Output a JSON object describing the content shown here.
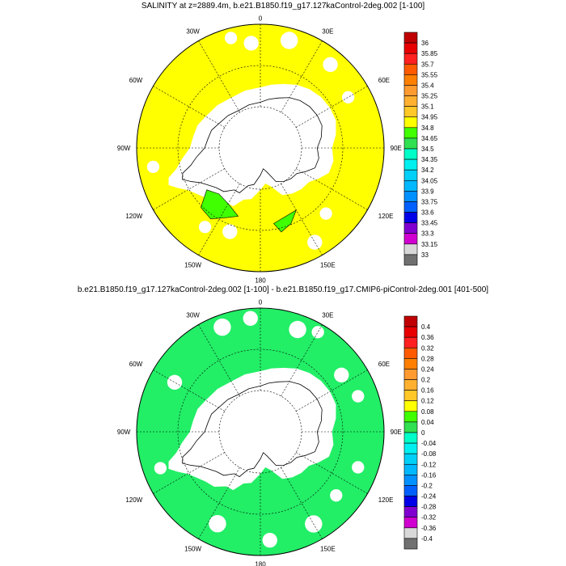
{
  "panels": [
    {
      "title": "SALINITY at z=2889.4m, b.e21.B1850.f19_g17.127kaControl-2deg.002 [1-100]",
      "lon_labels": {
        "lbl_0": "0",
        "lbl_30e": "30E",
        "lbl_60e": "60E",
        "lbl_90e": "90E",
        "lbl_120e": "120E",
        "lbl_150e": "150E",
        "lbl_180": "180",
        "lbl_150w": "150W",
        "lbl_120w": "120W",
        "lbl_90w": "90W",
        "lbl_60w": "60W",
        "lbl_30w": "30W"
      },
      "field_color": "#ffff00",
      "colorbar": {
        "labels": [
          "36",
          "35.85",
          "35.7",
          "35.55",
          "35.4",
          "35.25",
          "35.1",
          "34.95",
          "34.8",
          "34.65",
          "34.5",
          "34.35",
          "34.2",
          "34.05",
          "33.9",
          "33.75",
          "33.6",
          "33.45",
          "33.3",
          "33.15",
          "33"
        ],
        "colors": [
          "#c00000",
          "#e80000",
          "#ff2020",
          "#ff5a00",
          "#ff8000",
          "#ff9a30",
          "#ffb030",
          "#ffc828",
          "#ffff00",
          "#40ff00",
          "#30e050",
          "#00ffc8",
          "#00f0f0",
          "#00d0f8",
          "#00b8ff",
          "#0090ff",
          "#0060ff",
          "#0000e8",
          "#8000d0",
          "#d000d0",
          "#d8d8d8",
          "#707070"
        ]
      }
    },
    {
      "title": "b.e21.B1850.f19_g17.127kaControl-2deg.002 [1-100] - b.e21.B1850.f19_g17.CMIP6-piControl-2deg.001 [401-500]",
      "lon_labels": {
        "lbl_0": "0",
        "lbl_30e": "30E",
        "lbl_60e": "60E",
        "lbl_90e": "90E",
        "lbl_120e": "120E",
        "lbl_150e": "150E",
        "lbl_180": "180",
        "lbl_150w": "150W",
        "lbl_120w": "120W",
        "lbl_90w": "90W",
        "lbl_60w": "60W",
        "lbl_30w": "30W"
      },
      "field_color": "#22ee66",
      "colorbar": {
        "labels": [
          "0.4",
          "0.36",
          "0.32",
          "0.28",
          "0.24",
          "0.2",
          "0.16",
          "0.12",
          "0.08",
          "0.04",
          "0",
          "-0.04",
          "-0.08",
          "-0.12",
          "-0.16",
          "-0.2",
          "-0.24",
          "-0.28",
          "-0.32",
          "-0.36",
          "-0.4"
        ],
        "colors": [
          "#c00000",
          "#e80000",
          "#ff2020",
          "#ff5a00",
          "#ff8000",
          "#ff9a30",
          "#ffb030",
          "#ffc828",
          "#ffff00",
          "#40ff00",
          "#30e050",
          "#00ffc8",
          "#00f0f0",
          "#00d0f8",
          "#00b8ff",
          "#0090ff",
          "#0060ff",
          "#0000e8",
          "#8000d0",
          "#d000d0",
          "#d8d8d8",
          "#707070"
        ]
      }
    }
  ]
}
